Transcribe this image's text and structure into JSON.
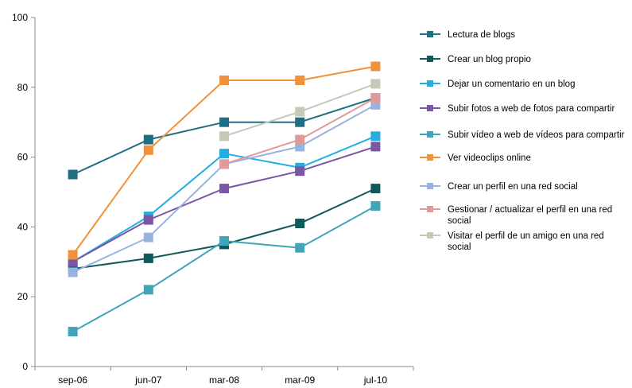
{
  "chart_data": {
    "type": "line",
    "categories": [
      "sep-06",
      "jun-07",
      "mar-08",
      "mar-09",
      "jul-10"
    ],
    "ylim": [
      0,
      100
    ],
    "yticks": [
      0,
      20,
      40,
      60,
      80,
      100
    ],
    "grid": false,
    "legend_position": "right",
    "series": [
      {
        "name": "Lectura de blogs",
        "color": "#1f6f82",
        "values": [
          55,
          65,
          70,
          70,
          77
        ]
      },
      {
        "name": "Crear un blog propio",
        "color": "#0f5a5a",
        "values": [
          28,
          31,
          35,
          41,
          51
        ]
      },
      {
        "name": "Dejar un comentario en un blog",
        "color": "#22aee0",
        "values": [
          30,
          43,
          61,
          57,
          66
        ]
      },
      {
        "name": "Subir fotos a web de fotos para compartir",
        "color": "#7a57a3",
        "values": [
          30,
          42,
          51,
          56,
          63
        ]
      },
      {
        "name": "Subir vídeo a web de vídeos para compartir",
        "color": "#3fa5b8",
        "values": [
          10,
          22,
          36,
          34,
          46
        ]
      },
      {
        "name": "Ver videoclips online",
        "color": "#f0923a",
        "values": [
          32,
          62,
          82,
          82,
          86
        ]
      },
      {
        "name": "Crear un perfil en una red social",
        "color": "#99b3e0",
        "values": [
          27,
          37,
          58,
          63,
          75
        ]
      },
      {
        "name": "Gestionar / actualizar el perfil en una red social",
        "color": "#e09a9a",
        "values": [
          null,
          null,
          58,
          65,
          77
        ]
      },
      {
        "name": "Visitar el perfil de un amigo en una red social",
        "color": "#c8c8b8",
        "values": [
          null,
          null,
          66,
          73,
          81
        ]
      }
    ]
  }
}
